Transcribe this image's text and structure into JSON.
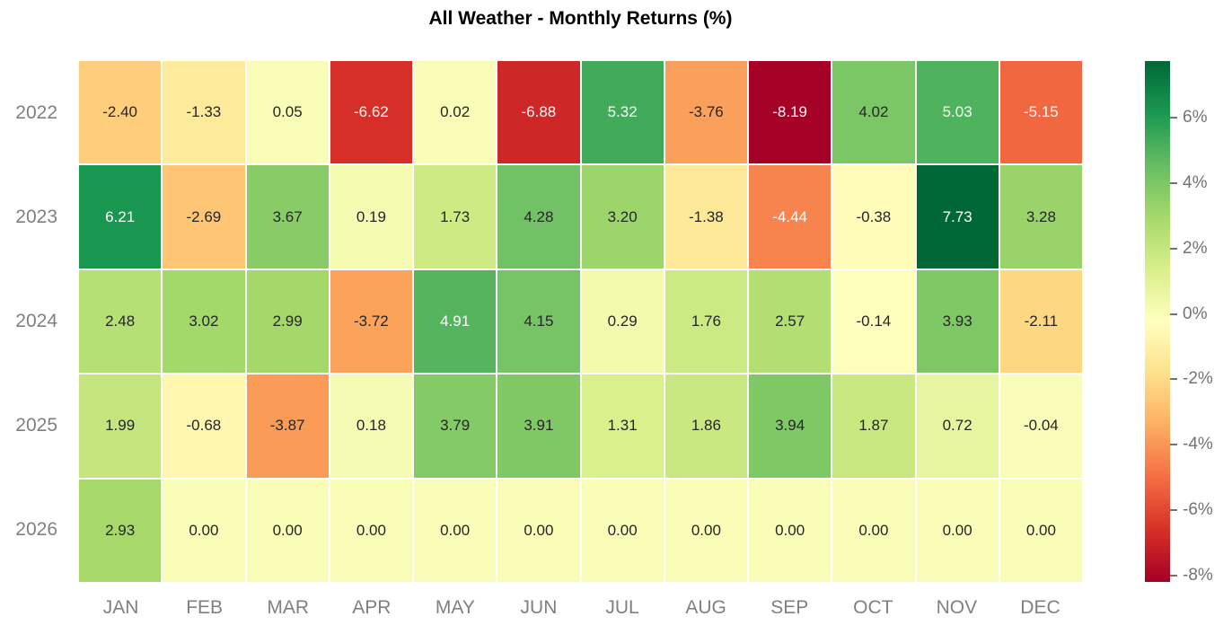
{
  "title": "All Weather - Monthly Returns (%)",
  "chart_data": {
    "type": "heatmap",
    "title": "All Weather - Monthly Returns (%)",
    "x_categories": [
      "JAN",
      "FEB",
      "MAR",
      "APR",
      "MAY",
      "JUN",
      "JUL",
      "AUG",
      "SEP",
      "OCT",
      "NOV",
      "DEC"
    ],
    "y_categories": [
      "2022",
      "2023",
      "2024",
      "2025",
      "2026"
    ],
    "series": [
      {
        "name": "2022",
        "values": [
          -2.4,
          -1.33,
          0.05,
          -6.62,
          0.02,
          -6.88,
          5.32,
          -3.76,
          -8.19,
          4.02,
          5.03,
          -5.15
        ]
      },
      {
        "name": "2023",
        "values": [
          6.21,
          -2.69,
          3.67,
          0.19,
          1.73,
          4.28,
          3.2,
          -1.38,
          -4.44,
          -0.38,
          7.73,
          3.28
        ]
      },
      {
        "name": "2024",
        "values": [
          2.48,
          3.02,
          2.99,
          -3.72,
          4.91,
          4.15,
          0.29,
          1.76,
          2.57,
          -0.14,
          3.93,
          -2.11
        ]
      },
      {
        "name": "2025",
        "values": [
          1.99,
          -0.68,
          -3.87,
          0.18,
          3.79,
          3.91,
          1.31,
          1.86,
          3.94,
          1.87,
          0.72,
          -0.04
        ]
      },
      {
        "name": "2026",
        "values": [
          2.93,
          0.0,
          0.0,
          0.0,
          0.0,
          0.0,
          0.0,
          0.0,
          0.0,
          0.0,
          0.0,
          0.0
        ]
      }
    ],
    "value_decimals": 2,
    "vmin": -8.19,
    "vmax": 7.73,
    "annotations_shown": true,
    "grid_lines": false,
    "legend_position": "right",
    "colormap": {
      "name": "RdYlGn",
      "stops": [
        "#a50026",
        "#d73027",
        "#f46d43",
        "#fdae61",
        "#fee08b",
        "#ffffbf",
        "#d9ef8b",
        "#a6d96a",
        "#66bd63",
        "#1a9850",
        "#006837"
      ]
    },
    "colorbar": {
      "ticks": [
        {
          "value": 6,
          "label": "6%"
        },
        {
          "value": 4,
          "label": "4%"
        },
        {
          "value": 2,
          "label": "2%"
        },
        {
          "value": 0,
          "label": "0%"
        },
        {
          "value": -2,
          "label": "-2%"
        },
        {
          "value": -4,
          "label": "-4%"
        },
        {
          "value": -6,
          "label": "-6%"
        },
        {
          "value": -8,
          "label": "-8%"
        }
      ]
    }
  },
  "colors": {
    "background": "#ffffff",
    "title": "#000000",
    "axis_label": "#808080",
    "colorbar_tick": "#737373",
    "annotation_dark": "#262626",
    "annotation_light": "#ffffff"
  }
}
